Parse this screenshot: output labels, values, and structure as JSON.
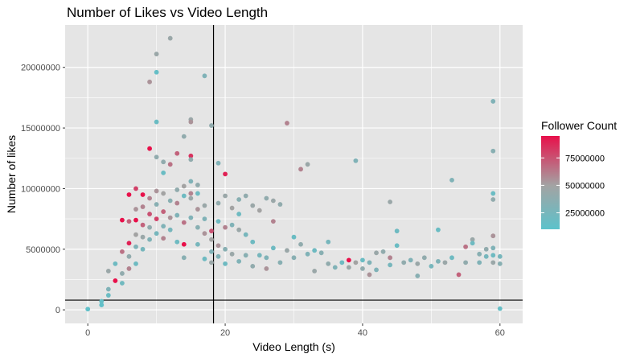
{
  "chart_data": {
    "type": "scatter",
    "title": "Number of Likes vs Video Length",
    "xlabel": "Video Length (s)",
    "ylabel": "Number of likes",
    "xlim": [
      -3.3,
      63.3
    ],
    "ylim": [
      -1120000,
      23500000
    ],
    "x_ticks": [
      0,
      20,
      40,
      60
    ],
    "x_tick_labels": [
      "0",
      "20",
      "40",
      "60"
    ],
    "y_ticks": [
      0,
      5000000,
      10000000,
      15000000,
      20000000
    ],
    "y_tick_labels": [
      "0",
      "5000000",
      "10000000",
      "15000000",
      "20000000"
    ],
    "grid": true,
    "panel_background": "#e5e5e5",
    "grid_color": "#ffffff",
    "reference_lines": {
      "vline_x": 18.3,
      "hline_y": 800000,
      "color": "#000000"
    },
    "color_scale": {
      "title": "Follower Count",
      "low_color": "#5cc2cb",
      "mid_color": "#a3a3a3",
      "high_color": "#e8104a",
      "min": 10000000,
      "max": 95000000,
      "breaks": [
        25000000,
        50000000,
        75000000
      ],
      "break_labels": [
        "25000000",
        "50000000",
        "75000000"
      ],
      "legend_position": "right"
    },
    "points": [
      {
        "x": 0,
        "y": 60000,
        "c": 12000000
      },
      {
        "x": 2,
        "y": 400000,
        "c": 12000000
      },
      {
        "x": 2,
        "y": 700000,
        "c": 15000000
      },
      {
        "x": 3,
        "y": 1700000,
        "c": 30000000
      },
      {
        "x": 3,
        "y": 1200000,
        "c": 18000000
      },
      {
        "x": 3,
        "y": 3200000,
        "c": 45000000
      },
      {
        "x": 4,
        "y": 2400000,
        "c": 95000000
      },
      {
        "x": 4,
        "y": 3800000,
        "c": 20000000
      },
      {
        "x": 5,
        "y": 7400000,
        "c": 95000000
      },
      {
        "x": 5,
        "y": 4800000,
        "c": 65000000
      },
      {
        "x": 5,
        "y": 3000000,
        "c": 40000000
      },
      {
        "x": 5,
        "y": 2200000,
        "c": 22000000
      },
      {
        "x": 6,
        "y": 9500000,
        "c": 95000000
      },
      {
        "x": 6,
        "y": 7300000,
        "c": 70000000
      },
      {
        "x": 6,
        "y": 5500000,
        "c": 90000000
      },
      {
        "x": 6,
        "y": 4400000,
        "c": 40000000
      },
      {
        "x": 6,
        "y": 3400000,
        "c": 60000000
      },
      {
        "x": 7,
        "y": 10000000,
        "c": 80000000
      },
      {
        "x": 7,
        "y": 8300000,
        "c": 55000000
      },
      {
        "x": 7,
        "y": 7400000,
        "c": 95000000
      },
      {
        "x": 7,
        "y": 6200000,
        "c": 50000000
      },
      {
        "x": 7,
        "y": 5200000,
        "c": 30000000
      },
      {
        "x": 7,
        "y": 3800000,
        "c": 20000000
      },
      {
        "x": 8,
        "y": 9500000,
        "c": 95000000
      },
      {
        "x": 8,
        "y": 8500000,
        "c": 60000000
      },
      {
        "x": 8,
        "y": 7000000,
        "c": 70000000
      },
      {
        "x": 8,
        "y": 6000000,
        "c": 45000000
      },
      {
        "x": 8,
        "y": 5000000,
        "c": 25000000
      },
      {
        "x": 9,
        "y": 18800000,
        "c": 55000000
      },
      {
        "x": 9,
        "y": 13300000,
        "c": 95000000
      },
      {
        "x": 9,
        "y": 9200000,
        "c": 60000000
      },
      {
        "x": 9,
        "y": 7900000,
        "c": 75000000
      },
      {
        "x": 9,
        "y": 6800000,
        "c": 40000000
      },
      {
        "x": 9,
        "y": 5800000,
        "c": 30000000
      },
      {
        "x": 10,
        "y": 21100000,
        "c": 45000000
      },
      {
        "x": 10,
        "y": 19600000,
        "c": 15000000
      },
      {
        "x": 10,
        "y": 15500000,
        "c": 18000000
      },
      {
        "x": 10,
        "y": 12600000,
        "c": 40000000
      },
      {
        "x": 10,
        "y": 9800000,
        "c": 55000000
      },
      {
        "x": 10,
        "y": 8700000,
        "c": 35000000
      },
      {
        "x": 10,
        "y": 7500000,
        "c": 80000000
      },
      {
        "x": 10,
        "y": 6300000,
        "c": 25000000
      },
      {
        "x": 11,
        "y": 12200000,
        "c": 40000000
      },
      {
        "x": 11,
        "y": 11300000,
        "c": 18000000
      },
      {
        "x": 11,
        "y": 9600000,
        "c": 50000000
      },
      {
        "x": 11,
        "y": 8100000,
        "c": 70000000
      },
      {
        "x": 11,
        "y": 6900000,
        "c": 30000000
      },
      {
        "x": 11,
        "y": 5900000,
        "c": 60000000
      },
      {
        "x": 12,
        "y": 22400000,
        "c": 45000000
      },
      {
        "x": 12,
        "y": 12000000,
        "c": 65000000
      },
      {
        "x": 12,
        "y": 9000000,
        "c": 35000000
      },
      {
        "x": 12,
        "y": 7600000,
        "c": 55000000
      },
      {
        "x": 12,
        "y": 6600000,
        "c": 25000000
      },
      {
        "x": 13,
        "y": 12900000,
        "c": 70000000
      },
      {
        "x": 13,
        "y": 9900000,
        "c": 40000000
      },
      {
        "x": 13,
        "y": 8800000,
        "c": 60000000
      },
      {
        "x": 13,
        "y": 7800000,
        "c": 30000000
      },
      {
        "x": 13,
        "y": 5600000,
        "c": 20000000
      },
      {
        "x": 14,
        "y": 14300000,
        "c": 40000000
      },
      {
        "x": 14,
        "y": 10200000,
        "c": 50000000
      },
      {
        "x": 14,
        "y": 9400000,
        "c": 20000000
      },
      {
        "x": 14,
        "y": 7200000,
        "c": 65000000
      },
      {
        "x": 14,
        "y": 5400000,
        "c": 95000000
      },
      {
        "x": 14,
        "y": 4300000,
        "c": 35000000
      },
      {
        "x": 15,
        "y": 15700000,
        "c": 45000000
      },
      {
        "x": 15,
        "y": 15500000,
        "c": 55000000
      },
      {
        "x": 15,
        "y": 12700000,
        "c": 85000000
      },
      {
        "x": 15,
        "y": 12400000,
        "c": 40000000
      },
      {
        "x": 15,
        "y": 10600000,
        "c": 30000000
      },
      {
        "x": 15,
        "y": 9600000,
        "c": 60000000
      },
      {
        "x": 15,
        "y": 9200000,
        "c": 45000000
      },
      {
        "x": 15,
        "y": 7600000,
        "c": 30000000
      },
      {
        "x": 16,
        "y": 10300000,
        "c": 40000000
      },
      {
        "x": 16,
        "y": 9600000,
        "c": 20000000
      },
      {
        "x": 16,
        "y": 8300000,
        "c": 55000000
      },
      {
        "x": 16,
        "y": 6800000,
        "c": 35000000
      },
      {
        "x": 16,
        "y": 5400000,
        "c": 25000000
      },
      {
        "x": 17,
        "y": 19300000,
        "c": 30000000
      },
      {
        "x": 17,
        "y": 8600000,
        "c": 45000000
      },
      {
        "x": 17,
        "y": 7500000,
        "c": 30000000
      },
      {
        "x": 17,
        "y": 6300000,
        "c": 55000000
      },
      {
        "x": 17,
        "y": 4200000,
        "c": 20000000
      },
      {
        "x": 18,
        "y": 15200000,
        "c": 40000000
      },
      {
        "x": 18,
        "y": 6500000,
        "c": 75000000
      },
      {
        "x": 18,
        "y": 5800000,
        "c": 50000000
      },
      {
        "x": 18,
        "y": 4800000,
        "c": 30000000
      },
      {
        "x": 18,
        "y": 3900000,
        "c": 45000000
      },
      {
        "x": 19,
        "y": 12100000,
        "c": 30000000
      },
      {
        "x": 19,
        "y": 8800000,
        "c": 40000000
      },
      {
        "x": 19,
        "y": 7300000,
        "c": 20000000
      },
      {
        "x": 19,
        "y": 5300000,
        "c": 55000000
      },
      {
        "x": 19,
        "y": 4400000,
        "c": 30000000
      },
      {
        "x": 20,
        "y": 11200000,
        "c": 90000000
      },
      {
        "x": 20,
        "y": 9400000,
        "c": 45000000
      },
      {
        "x": 20,
        "y": 6800000,
        "c": 60000000
      },
      {
        "x": 20,
        "y": 5000000,
        "c": 35000000
      },
      {
        "x": 20,
        "y": 3800000,
        "c": 20000000
      },
      {
        "x": 21,
        "y": 8400000,
        "c": 50000000
      },
      {
        "x": 21,
        "y": 7000000,
        "c": 30000000
      },
      {
        "x": 21,
        "y": 4600000,
        "c": 45000000
      },
      {
        "x": 22,
        "y": 9100000,
        "c": 35000000
      },
      {
        "x": 22,
        "y": 7900000,
        "c": 20000000
      },
      {
        "x": 22,
        "y": 6600000,
        "c": 45000000
      },
      {
        "x": 22,
        "y": 4000000,
        "c": 30000000
      },
      {
        "x": 23,
        "y": 9400000,
        "c": 40000000
      },
      {
        "x": 23,
        "y": 6200000,
        "c": 25000000
      },
      {
        "x": 23,
        "y": 4500000,
        "c": 35000000
      },
      {
        "x": 24,
        "y": 8600000,
        "c": 45000000
      },
      {
        "x": 24,
        "y": 5600000,
        "c": 20000000
      },
      {
        "x": 24,
        "y": 3600000,
        "c": 40000000
      },
      {
        "x": 25,
        "y": 8200000,
        "c": 50000000
      },
      {
        "x": 25,
        "y": 4500000,
        "c": 25000000
      },
      {
        "x": 26,
        "y": 9200000,
        "c": 40000000
      },
      {
        "x": 26,
        "y": 4300000,
        "c": 30000000
      },
      {
        "x": 26,
        "y": 3400000,
        "c": 55000000
      },
      {
        "x": 27,
        "y": 9000000,
        "c": 45000000
      },
      {
        "x": 27,
        "y": 7300000,
        "c": 60000000
      },
      {
        "x": 27,
        "y": 5100000,
        "c": 20000000
      },
      {
        "x": 28,
        "y": 8700000,
        "c": 40000000
      },
      {
        "x": 28,
        "y": 3900000,
        "c": 35000000
      },
      {
        "x": 29,
        "y": 15400000,
        "c": 60000000
      },
      {
        "x": 29,
        "y": 4900000,
        "c": 45000000
      },
      {
        "x": 30,
        "y": 6000000,
        "c": 18000000
      },
      {
        "x": 30,
        "y": 4300000,
        "c": 35000000
      },
      {
        "x": 31,
        "y": 11600000,
        "c": 60000000
      },
      {
        "x": 31,
        "y": 5400000,
        "c": 40000000
      },
      {
        "x": 32,
        "y": 12000000,
        "c": 45000000
      },
      {
        "x": 32,
        "y": 4600000,
        "c": 30000000
      },
      {
        "x": 33,
        "y": 4900000,
        "c": 20000000
      },
      {
        "x": 33,
        "y": 3200000,
        "c": 45000000
      },
      {
        "x": 34,
        "y": 4700000,
        "c": 35000000
      },
      {
        "x": 35,
        "y": 5600000,
        "c": 25000000
      },
      {
        "x": 35,
        "y": 3800000,
        "c": 40000000
      },
      {
        "x": 36,
        "y": 3500000,
        "c": 30000000
      },
      {
        "x": 37,
        "y": 3900000,
        "c": 20000000
      },
      {
        "x": 38,
        "y": 4100000,
        "c": 95000000
      },
      {
        "x": 38,
        "y": 3500000,
        "c": 45000000
      },
      {
        "x": 39,
        "y": 12300000,
        "c": 30000000
      },
      {
        "x": 39,
        "y": 3900000,
        "c": 50000000
      },
      {
        "x": 40,
        "y": 4100000,
        "c": 18000000
      },
      {
        "x": 40,
        "y": 3400000,
        "c": 40000000
      },
      {
        "x": 41,
        "y": 3900000,
        "c": 30000000
      },
      {
        "x": 41,
        "y": 2900000,
        "c": 55000000
      },
      {
        "x": 42,
        "y": 4700000,
        "c": 45000000
      },
      {
        "x": 42,
        "y": 3300000,
        "c": 30000000
      },
      {
        "x": 43,
        "y": 4800000,
        "c": 40000000
      },
      {
        "x": 44,
        "y": 8900000,
        "c": 45000000
      },
      {
        "x": 44,
        "y": 4300000,
        "c": 60000000
      },
      {
        "x": 44,
        "y": 3700000,
        "c": 25000000
      },
      {
        "x": 45,
        "y": 6500000,
        "c": 20000000
      },
      {
        "x": 45,
        "y": 5300000,
        "c": 18000000
      },
      {
        "x": 46,
        "y": 3900000,
        "c": 40000000
      },
      {
        "x": 47,
        "y": 4100000,
        "c": 30000000
      },
      {
        "x": 48,
        "y": 3800000,
        "c": 45000000
      },
      {
        "x": 48,
        "y": 2800000,
        "c": 35000000
      },
      {
        "x": 49,
        "y": 4300000,
        "c": 40000000
      },
      {
        "x": 50,
        "y": 3600000,
        "c": 25000000
      },
      {
        "x": 51,
        "y": 6600000,
        "c": 18000000
      },
      {
        "x": 51,
        "y": 4000000,
        "c": 30000000
      },
      {
        "x": 52,
        "y": 3900000,
        "c": 45000000
      },
      {
        "x": 53,
        "y": 10700000,
        "c": 30000000
      },
      {
        "x": 53,
        "y": 4300000,
        "c": 20000000
      },
      {
        "x": 54,
        "y": 2900000,
        "c": 70000000
      },
      {
        "x": 55,
        "y": 5200000,
        "c": 65000000
      },
      {
        "x": 55,
        "y": 3900000,
        "c": 40000000
      },
      {
        "x": 56,
        "y": 5800000,
        "c": 45000000
      },
      {
        "x": 56,
        "y": 5500000,
        "c": 20000000
      },
      {
        "x": 57,
        "y": 4600000,
        "c": 35000000
      },
      {
        "x": 57,
        "y": 3900000,
        "c": 30000000
      },
      {
        "x": 58,
        "y": 5000000,
        "c": 40000000
      },
      {
        "x": 58,
        "y": 4400000,
        "c": 25000000
      },
      {
        "x": 59,
        "y": 17200000,
        "c": 30000000
      },
      {
        "x": 59,
        "y": 13100000,
        "c": 35000000
      },
      {
        "x": 59,
        "y": 9600000,
        "c": 18000000
      },
      {
        "x": 59,
        "y": 9100000,
        "c": 40000000
      },
      {
        "x": 59,
        "y": 6100000,
        "c": 55000000
      },
      {
        "x": 59,
        "y": 5100000,
        "c": 30000000
      },
      {
        "x": 59,
        "y": 4500000,
        "c": 20000000
      },
      {
        "x": 59,
        "y": 3900000,
        "c": 45000000
      },
      {
        "x": 60,
        "y": 4400000,
        "c": 25000000
      },
      {
        "x": 60,
        "y": 3800000,
        "c": 35000000
      },
      {
        "x": 60,
        "y": 100000,
        "c": 15000000
      }
    ]
  }
}
